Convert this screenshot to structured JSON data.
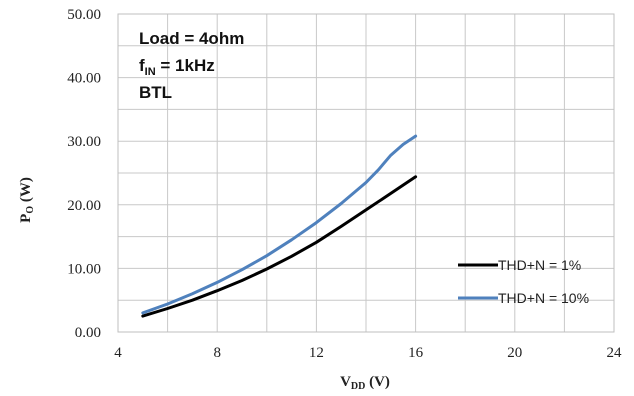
{
  "chart_data": {
    "type": "line",
    "annotations": {
      "load": "Load = 4ohm",
      "fin_main": "f",
      "fin_sub": "IN",
      "fin_value": " = 1kHz",
      "mode": "BTL"
    },
    "ylabel": {
      "main": "P",
      "sub": "O",
      "unit": " (W)"
    },
    "xlabel": {
      "main": "V",
      "sub": "DD",
      "unit": " (V)"
    },
    "xlim": [
      4,
      24
    ],
    "ylim": [
      0,
      50
    ],
    "xticks": [
      4,
      8,
      12,
      16,
      20,
      24
    ],
    "yticks": [
      0,
      10,
      20,
      30,
      40,
      50
    ],
    "ytick_labels": [
      "0.00",
      "10.00",
      "20.00",
      "30.00",
      "40.00",
      "50.00"
    ],
    "xtick_labels": [
      "4",
      "8",
      "12",
      "16",
      "20",
      "24"
    ],
    "grid": true,
    "legend_position": "right",
    "series": [
      {
        "name": "THD+N = 1%",
        "color": "#000000",
        "x": [
          5,
          6,
          7,
          8,
          9,
          10,
          11,
          12,
          13,
          14,
          15,
          16
        ],
        "y": [
          2.5,
          3.7,
          5.0,
          6.5,
          8.1,
          9.9,
          11.9,
          14.1,
          16.6,
          19.2,
          21.8,
          24.4
        ]
      },
      {
        "name": "THD+N = 10%",
        "color": "#4F81BD",
        "x": [
          5,
          6,
          7,
          8,
          9,
          10,
          11,
          12,
          13,
          14,
          14.5,
          15,
          15.5,
          16
        ],
        "y": [
          3.0,
          4.4,
          6.0,
          7.8,
          9.8,
          12.0,
          14.5,
          17.2,
          20.2,
          23.5,
          25.5,
          27.8,
          29.5,
          30.8
        ]
      }
    ]
  }
}
